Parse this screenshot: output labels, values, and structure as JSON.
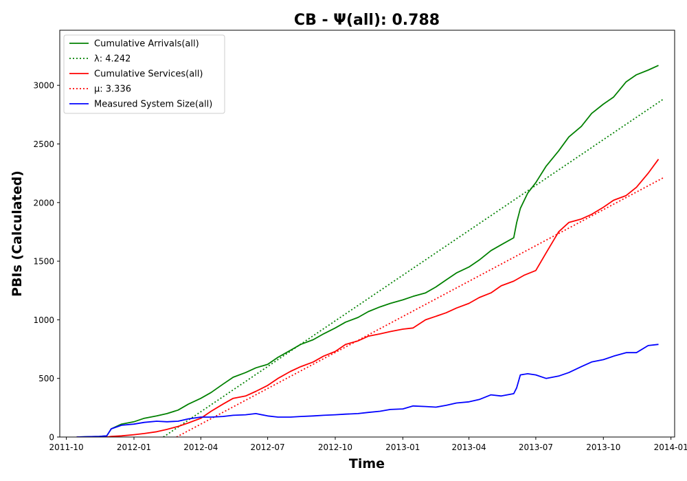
{
  "chart_data": {
    "type": "line",
    "title": "CB -  Ψ(all): 0.788",
    "xlabel": "Time",
    "ylabel": "PBIs (Calculated)",
    "x_type": "date",
    "xlim": [
      "2011-09-22",
      "2014-01-06"
    ],
    "ylim": [
      0,
      3470
    ],
    "x_ticks": [
      "2011-10",
      "2012-01",
      "2012-04",
      "2012-07",
      "2012-10",
      "2013-01",
      "2013-04",
      "2013-07",
      "2013-10",
      "2014-01"
    ],
    "y_ticks": [
      0,
      500,
      1000,
      1500,
      2000,
      2500,
      3000
    ],
    "grid": false,
    "legend_position": "top-left",
    "series": [
      {
        "name": "Cumulative Arrivals(all)",
        "style": "solid",
        "color": "#008000",
        "x": [
          "2011-10-15",
          "2011-11-15",
          "2011-11-25",
          "2011-12-01",
          "2011-12-15",
          "2012-01-01",
          "2012-01-15",
          "2012-02-01",
          "2012-02-15",
          "2012-03-01",
          "2012-03-15",
          "2012-04-01",
          "2012-04-15",
          "2012-05-01",
          "2012-05-15",
          "2012-06-01",
          "2012-06-15",
          "2012-07-01",
          "2012-07-15",
          "2012-08-01",
          "2012-08-15",
          "2012-09-01",
          "2012-09-15",
          "2012-10-01",
          "2012-10-15",
          "2012-11-01",
          "2012-11-15",
          "2012-12-01",
          "2012-12-15",
          "2013-01-01",
          "2013-01-15",
          "2013-02-01",
          "2013-02-15",
          "2013-03-01",
          "2013-03-15",
          "2013-04-01",
          "2013-04-15",
          "2013-05-01",
          "2013-05-15",
          "2013-06-01",
          "2013-06-05",
          "2013-06-10",
          "2013-06-20",
          "2013-07-01",
          "2013-07-15",
          "2013-08-01",
          "2013-08-15",
          "2013-09-01",
          "2013-09-15",
          "2013-10-01",
          "2013-10-15",
          "2013-11-01",
          "2013-11-15",
          "2013-12-01",
          "2013-12-15"
        ],
        "y": [
          0,
          5,
          10,
          70,
          110,
          130,
          160,
          180,
          200,
          230,
          280,
          330,
          380,
          450,
          510,
          550,
          590,
          620,
          680,
          740,
          790,
          830,
          880,
          930,
          980,
          1020,
          1070,
          1110,
          1140,
          1170,
          1200,
          1230,
          1280,
          1340,
          1400,
          1450,
          1510,
          1590,
          1640,
          1700,
          1830,
          1950,
          2080,
          2170,
          2310,
          2440,
          2560,
          2650,
          2760,
          2840,
          2900,
          3030,
          3090,
          3130,
          3170
        ]
      },
      {
        "name": "λ: 4.242",
        "style": "dotted",
        "color": "#008000",
        "x": [
          "2012-02-10",
          "2013-12-21"
        ],
        "y": [
          0,
          2880
        ]
      },
      {
        "name": "Cumulative Services(all)",
        "style": "solid",
        "color": "#ff0000",
        "x": [
          "2011-10-15",
          "2011-11-25",
          "2011-12-01",
          "2011-12-15",
          "2012-01-01",
          "2012-01-15",
          "2012-02-01",
          "2012-02-15",
          "2012-03-01",
          "2012-03-15",
          "2012-04-01",
          "2012-04-15",
          "2012-05-01",
          "2012-05-15",
          "2012-06-01",
          "2012-06-15",
          "2012-07-01",
          "2012-07-15",
          "2012-08-01",
          "2012-08-15",
          "2012-09-01",
          "2012-09-15",
          "2012-10-01",
          "2012-10-15",
          "2012-11-01",
          "2012-11-15",
          "2012-12-01",
          "2012-12-15",
          "2013-01-01",
          "2013-01-15",
          "2013-02-01",
          "2013-02-15",
          "2013-03-01",
          "2013-03-15",
          "2013-04-01",
          "2013-04-15",
          "2013-05-01",
          "2013-05-15",
          "2013-06-01",
          "2013-06-15",
          "2013-07-01",
          "2013-07-15",
          "2013-08-01",
          "2013-08-15",
          "2013-09-01",
          "2013-09-15",
          "2013-10-01",
          "2013-10-15",
          "2013-11-01",
          "2013-11-15",
          "2013-12-01",
          "2013-12-15"
        ],
        "y": [
          0,
          0,
          5,
          10,
          20,
          30,
          45,
          65,
          90,
          120,
          160,
          220,
          280,
          330,
          350,
          390,
          440,
          500,
          560,
          600,
          640,
          690,
          730,
          790,
          820,
          860,
          880,
          900,
          920,
          930,
          1000,
          1030,
          1060,
          1100,
          1140,
          1190,
          1230,
          1290,
          1330,
          1380,
          1420,
          1570,
          1750,
          1830,
          1860,
          1900,
          1960,
          2020,
          2060,
          2130,
          2250,
          2370
        ]
      },
      {
        "name": "μ: 3.336",
        "style": "dotted",
        "color": "#ff0000",
        "x": [
          "2012-02-28",
          "2013-12-21"
        ],
        "y": [
          0,
          2210
        ]
      },
      {
        "name": "Measured System Size(all)",
        "style": "solid",
        "color": "#0000ff",
        "x": [
          "2011-10-15",
          "2011-11-15",
          "2011-11-25",
          "2011-12-01",
          "2011-12-15",
          "2012-01-01",
          "2012-01-15",
          "2012-02-01",
          "2012-02-15",
          "2012-03-01",
          "2012-03-15",
          "2012-04-01",
          "2012-04-15",
          "2012-05-01",
          "2012-05-15",
          "2012-06-01",
          "2012-06-15",
          "2012-07-01",
          "2012-07-15",
          "2012-08-01",
          "2012-08-15",
          "2012-09-01",
          "2012-09-15",
          "2012-10-01",
          "2012-10-15",
          "2012-11-01",
          "2012-11-15",
          "2012-12-01",
          "2012-12-15",
          "2013-01-01",
          "2013-01-15",
          "2013-02-01",
          "2013-02-15",
          "2013-03-01",
          "2013-03-15",
          "2013-04-01",
          "2013-04-15",
          "2013-05-01",
          "2013-05-15",
          "2013-06-01",
          "2013-06-05",
          "2013-06-10",
          "2013-06-20",
          "2013-07-01",
          "2013-07-15",
          "2013-08-01",
          "2013-08-15",
          "2013-09-01",
          "2013-09-15",
          "2013-10-01",
          "2013-10-15",
          "2013-11-01",
          "2013-11-15",
          "2013-12-01",
          "2013-12-15"
        ],
        "y": [
          0,
          5,
          10,
          70,
          100,
          110,
          125,
          135,
          130,
          135,
          155,
          170,
          170,
          175,
          185,
          190,
          200,
          180,
          170,
          170,
          175,
          180,
          185,
          190,
          195,
          200,
          210,
          220,
          235,
          240,
          265,
          260,
          255,
          270,
          290,
          300,
          320,
          360,
          350,
          370,
          420,
          530,
          540,
          530,
          500,
          520,
          550,
          600,
          640,
          660,
          690,
          720,
          720,
          780,
          790
        ]
      }
    ]
  }
}
